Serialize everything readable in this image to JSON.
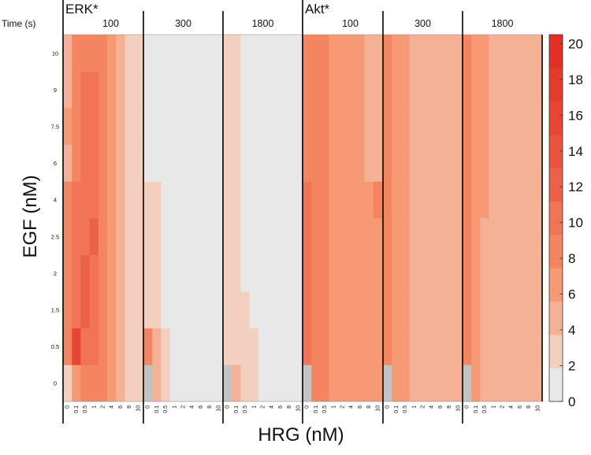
{
  "chart_data": {
    "type": "heatmap",
    "time_label": "Time (s)",
    "xlabel": "HRG (nM)",
    "ylabel": "EGF (nM)",
    "x_ticks": [
      "0",
      "0.1",
      "0.5",
      "1",
      "2",
      "4",
      "6",
      "8",
      "10"
    ],
    "y_ticks": [
      "0",
      "0.5",
      "1.5",
      "2",
      "2.5",
      "4",
      "6",
      "7.5",
      "9",
      "10"
    ],
    "colorbar": {
      "ticks": [
        "0",
        "2",
        "4",
        "6",
        "8",
        "10",
        "12",
        "14",
        "16",
        "18",
        "20"
      ],
      "range": [
        0,
        20.5
      ],
      "colors": [
        "#e8e8e8",
        "#f3cfc0",
        "#f5b196",
        "#f59a74",
        "#f38660",
        "#f07455",
        "#ec614b",
        "#e9533f",
        "#e74634",
        "#e53a2d",
        "#e22f27"
      ]
    },
    "panels": [
      {
        "readout": "ERK*",
        "time": "100",
        "values": [
          [
            2.5,
            6.0,
            8.0,
            9.0,
            8.5,
            7.0,
            5.0,
            3.0,
            3.0
          ],
          [
            8.5,
            16.0,
            10.5,
            10.5,
            8.5,
            7.0,
            5.0,
            3.0,
            3.0
          ],
          [
            9.0,
            10.0,
            12.0,
            11.0,
            8.5,
            7.0,
            5.0,
            3.0,
            3.0
          ],
          [
            9.0,
            10.0,
            11.5,
            11.0,
            8.5,
            7.0,
            5.0,
            3.0,
            3.0
          ],
          [
            9.0,
            10.5,
            11.0,
            11.5,
            8.5,
            7.0,
            5.0,
            3.0,
            3.0
          ],
          [
            8.0,
            9.5,
            10.5,
            10.0,
            8.5,
            7.0,
            5.0,
            3.0,
            3.0
          ],
          [
            5.5,
            9.0,
            11.0,
            9.5,
            8.5,
            7.0,
            5.0,
            3.0,
            3.0
          ],
          [
            6.0,
            8.5,
            10.0,
            9.5,
            8.5,
            7.0,
            5.0,
            3.0,
            3.0
          ],
          [
            5.0,
            8.0,
            10.5,
            9.5,
            8.5,
            6.5,
            4.5,
            3.0,
            2.0
          ],
          [
            4.5,
            7.5,
            8.5,
            8.5,
            8.0,
            6.0,
            4.5,
            3.0,
            2.0
          ]
        ]
      },
      {
        "readout": "",
        "time": "300",
        "values": [
          [
            0.5,
            4.0,
            3.5,
            1.0,
            1.0,
            1.0,
            1.0,
            1.0,
            1.0
          ],
          [
            9.0,
            4.0,
            3.5,
            1.0,
            1.0,
            1.0,
            1.0,
            1.0,
            1.0
          ],
          [
            3.5,
            3.0,
            1.0,
            1.0,
            1.0,
            1.0,
            1.0,
            1.0,
            1.0
          ],
          [
            3.5,
            3.0,
            1.0,
            1.0,
            1.0,
            1.0,
            1.0,
            1.0,
            1.0
          ],
          [
            3.5,
            3.0,
            1.0,
            1.0,
            1.0,
            1.0,
            1.0,
            1.0,
            1.0
          ],
          [
            3.5,
            3.0,
            1.0,
            1.0,
            1.0,
            1.0,
            1.0,
            1.0,
            1.0
          ],
          [
            1.0,
            1.0,
            1.0,
            1.0,
            1.0,
            1.0,
            1.0,
            1.0,
            1.0
          ],
          [
            1.0,
            1.0,
            1.0,
            1.0,
            1.0,
            1.0,
            1.0,
            1.0,
            1.0
          ],
          [
            1.0,
            1.0,
            1.0,
            1.0,
            1.0,
            1.0,
            1.0,
            1.0,
            1.0
          ],
          [
            1.0,
            1.0,
            1.0,
            1.0,
            1.0,
            1.0,
            1.0,
            1.0,
            1.0
          ]
        ]
      },
      {
        "readout": "",
        "time": "1800",
        "values": [
          [
            0.5,
            5.0,
            3.5,
            3.5,
            1.0,
            1.0,
            1.0,
            1.0,
            1.0
          ],
          [
            3.5,
            3.5,
            3.5,
            3.5,
            1.0,
            1.0,
            1.0,
            1.0,
            1.0
          ],
          [
            3.5,
            3.5,
            3.5,
            1.0,
            1.0,
            1.0,
            1.0,
            1.0,
            1.0
          ],
          [
            3.5,
            3.5,
            1.0,
            1.0,
            1.0,
            1.0,
            1.0,
            1.0,
            1.0
          ],
          [
            3.5,
            3.5,
            1.0,
            1.0,
            1.0,
            1.0,
            1.0,
            1.0,
            1.0
          ],
          [
            3.5,
            3.5,
            1.0,
            1.0,
            1.0,
            1.0,
            1.0,
            1.0,
            1.0
          ],
          [
            3.5,
            3.5,
            1.0,
            1.0,
            1.0,
            1.0,
            1.0,
            1.0,
            1.0
          ],
          [
            3.5,
            3.5,
            1.0,
            1.0,
            1.0,
            1.0,
            1.0,
            1.0,
            1.0
          ],
          [
            3.5,
            3.5,
            1.0,
            1.0,
            1.0,
            1.0,
            1.0,
            1.0,
            1.0
          ],
          [
            3.5,
            3.5,
            1.0,
            1.0,
            1.0,
            1.0,
            1.0,
            1.0,
            1.0
          ]
        ]
      },
      {
        "readout": "Akt*",
        "time": "100",
        "values": [
          [
            0.5,
            9.0,
            8.0,
            7.0,
            7.0,
            7.0,
            7.0,
            7.0,
            7.0
          ],
          [
            9.5,
            8.5,
            8.0,
            7.0,
            7.0,
            7.0,
            7.0,
            7.0,
            7.0
          ],
          [
            9.5,
            8.5,
            8.0,
            7.0,
            7.0,
            7.0,
            7.0,
            7.0,
            7.0
          ],
          [
            9.5,
            8.5,
            8.0,
            7.0,
            7.0,
            7.0,
            7.0,
            7.0,
            7.0
          ],
          [
            9.5,
            8.5,
            8.0,
            7.0,
            7.0,
            7.0,
            7.0,
            7.0,
            7.0
          ],
          [
            9.5,
            8.5,
            8.0,
            7.0,
            7.0,
            7.0,
            7.0,
            7.0,
            8.0
          ],
          [
            8.5,
            8.5,
            8.0,
            7.0,
            7.0,
            7.0,
            7.0,
            5.0,
            5.0
          ],
          [
            8.5,
            8.5,
            8.0,
            7.0,
            7.0,
            7.0,
            7.0,
            5.0,
            5.0
          ],
          [
            8.5,
            8.5,
            8.0,
            7.0,
            7.0,
            7.0,
            7.0,
            5.0,
            5.0
          ],
          [
            8.5,
            8.5,
            8.0,
            7.0,
            7.0,
            7.0,
            7.0,
            5.0,
            5.0
          ]
        ]
      },
      {
        "readout": "",
        "time": "300",
        "values": [
          [
            0.5,
            7.0,
            7.0,
            5.0,
            5.0,
            5.0,
            5.0,
            5.0,
            5.0
          ],
          [
            8.0,
            7.0,
            7.0,
            5.0,
            5.0,
            5.0,
            5.0,
            5.0,
            5.0
          ],
          [
            7.5,
            7.0,
            7.0,
            5.0,
            5.0,
            5.0,
            5.0,
            5.0,
            5.0
          ],
          [
            7.5,
            7.0,
            7.0,
            5.0,
            5.0,
            5.0,
            5.0,
            5.0,
            5.0
          ],
          [
            7.5,
            7.0,
            7.0,
            5.0,
            5.0,
            5.0,
            5.0,
            5.0,
            5.0
          ],
          [
            7.5,
            7.0,
            7.0,
            5.0,
            5.0,
            5.0,
            5.0,
            5.0,
            5.0
          ],
          [
            7.5,
            7.0,
            7.0,
            5.0,
            5.0,
            5.0,
            5.0,
            5.0,
            5.0
          ],
          [
            7.5,
            7.0,
            7.0,
            5.0,
            5.0,
            5.0,
            5.0,
            5.0,
            5.0
          ],
          [
            7.5,
            7.0,
            7.0,
            5.0,
            5.0,
            5.0,
            5.0,
            5.0,
            5.0
          ],
          [
            7.5,
            7.0,
            7.0,
            5.0,
            5.0,
            5.0,
            5.0,
            5.0,
            5.0
          ]
        ]
      },
      {
        "readout": "",
        "time": "1800",
        "values": [
          [
            0.5,
            7.0,
            5.0,
            5.0,
            5.0,
            5.0,
            5.0,
            5.0,
            5.0
          ],
          [
            7.5,
            7.0,
            5.0,
            5.0,
            5.0,
            5.0,
            5.0,
            5.0,
            5.0
          ],
          [
            7.5,
            7.0,
            5.0,
            5.0,
            5.0,
            5.0,
            5.0,
            5.0,
            5.0
          ],
          [
            7.5,
            7.0,
            5.0,
            5.0,
            5.0,
            5.0,
            5.0,
            5.0,
            5.0
          ],
          [
            7.5,
            7.0,
            5.0,
            5.0,
            5.0,
            5.0,
            5.0,
            5.0,
            5.0
          ],
          [
            7.5,
            7.0,
            7.0,
            5.0,
            5.0,
            5.0,
            5.0,
            5.0,
            5.0
          ],
          [
            7.5,
            7.0,
            7.0,
            5.0,
            5.0,
            5.0,
            5.0,
            5.0,
            5.0
          ],
          [
            7.5,
            7.0,
            7.0,
            5.0,
            5.0,
            5.0,
            5.0,
            5.0,
            5.0
          ],
          [
            7.5,
            7.0,
            7.0,
            5.0,
            5.0,
            5.0,
            5.0,
            5.0,
            5.0
          ],
          [
            7.5,
            7.0,
            7.0,
            5.0,
            5.0,
            5.0,
            5.0,
            5.0,
            5.0
          ]
        ]
      }
    ]
  }
}
